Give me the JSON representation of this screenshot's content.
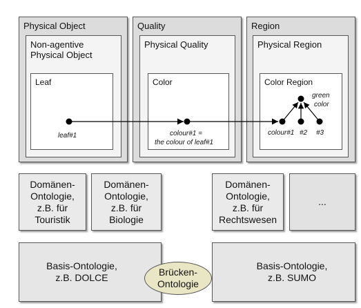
{
  "top_panels": {
    "physical_object": {
      "title": "Physical Object",
      "inner_title": "Non-agentive Physical Object",
      "innermost_title": "Leaf",
      "node_label": "leaf#1"
    },
    "quality": {
      "title": "Quality",
      "inner_title": "Physical Quality",
      "innermost_title": "Color",
      "node_label_line1": "colour#1 =",
      "node_label_line2": "the colour of leaf#1"
    },
    "region": {
      "title": "Region",
      "inner_title": "Physical Region",
      "innermost_title": "Color Region",
      "node_labels": [
        "colour#1",
        "#2",
        "#3"
      ],
      "target_label_line1": "green",
      "target_label_line2": "color"
    }
  },
  "domain_ontologies": [
    {
      "line1": "Domänen-",
      "line2": "Ontologie,",
      "line3": "z.B. für",
      "line4": "Touristik"
    },
    {
      "line1": "Domänen-",
      "line2": "Ontologie,",
      "line3": "z.B. für",
      "line4": "Biologie"
    },
    {
      "line1": "Domänen-",
      "line2": "Ontologie,",
      "line3": "z.B. für",
      "line4": "Rechtswesen"
    }
  ],
  "more_label": "...",
  "basis_left": {
    "line1": "Basis-Ontologie,",
    "line2": "z.B. DOLCE"
  },
  "basis_right": {
    "line1": "Basis-Ontologie,",
    "line2": "z.B. SUMO"
  },
  "bridge": {
    "line1": "Brücken-",
    "line2": "Ontologie"
  },
  "colors": {
    "outer_fill": "#dcdcdc",
    "bridge_fill": "#e8e6c4",
    "line": "#000000"
  }
}
